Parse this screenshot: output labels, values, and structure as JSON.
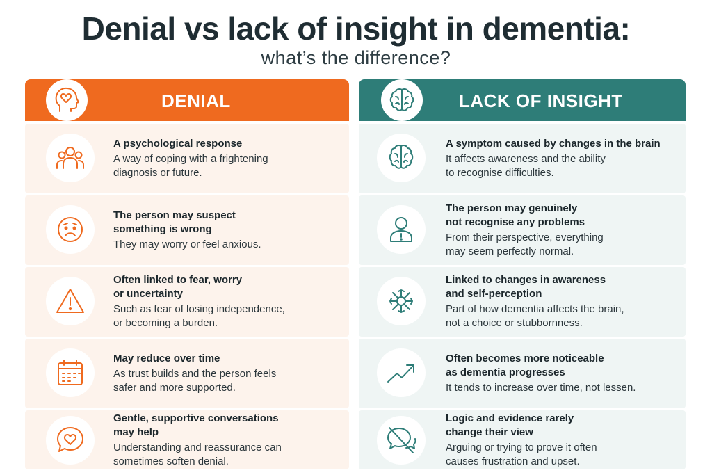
{
  "title": "Denial vs lack of insight in dementia:",
  "subtitle": "what’s the difference?",
  "colors": {
    "denial": "#ef6a1f",
    "insight": "#2e7d78"
  },
  "denial": {
    "label": "DENIAL",
    "icon": "head-heart-icon",
    "rows": [
      {
        "icon": "people-icon",
        "heading": "A psychological response",
        "body": "A way of coping with a frightening\ndiagnosis or future."
      },
      {
        "icon": "worried-face-icon",
        "heading": "The person may suspect\nsomething is wrong",
        "body": "They may worry or feel anxious."
      },
      {
        "icon": "warning-triangle-icon",
        "heading": "Often linked to fear, worry\nor uncertainty",
        "body": "Such as fear of losing independence,\nor becoming a burden."
      },
      {
        "icon": "calendar-icon",
        "heading": "May reduce over time",
        "body": "As trust builds and the person feels\nsafer and more supported."
      },
      {
        "icon": "heart-speech-bubble-icon",
        "heading": "Gentle, supportive conversations\nmay help",
        "body": "Understanding and reassurance can\nsometimes soften denial."
      }
    ]
  },
  "insight": {
    "label": "LACK OF INSIGHT",
    "icon": "brain-icon",
    "rows": [
      {
        "icon": "brain-icon",
        "heading": "A symptom caused by changes in the brain",
        "body": "It affects awareness and the ability\nto recognise difficulties."
      },
      {
        "icon": "person-alert-icon",
        "heading": "The person may genuinely\nnot recognise any problems",
        "body": "From their perspective, everything\nmay seem perfectly normal."
      },
      {
        "icon": "neuron-icon",
        "heading": "Linked to changes in awareness\nand self-perception",
        "body": "Part of how dementia affects the brain,\nnot a choice or stubbornness."
      },
      {
        "icon": "trend-up-icon",
        "heading": "Often becomes more noticeable\nas dementia progresses",
        "body": "It tends to increase over time, not lessen."
      },
      {
        "icon": "no-chat-icon",
        "heading": "Logic and evidence rarely\nchange their view",
        "body": "Arguing or trying to prove it often\ncauses frustration and upset."
      }
    ]
  }
}
